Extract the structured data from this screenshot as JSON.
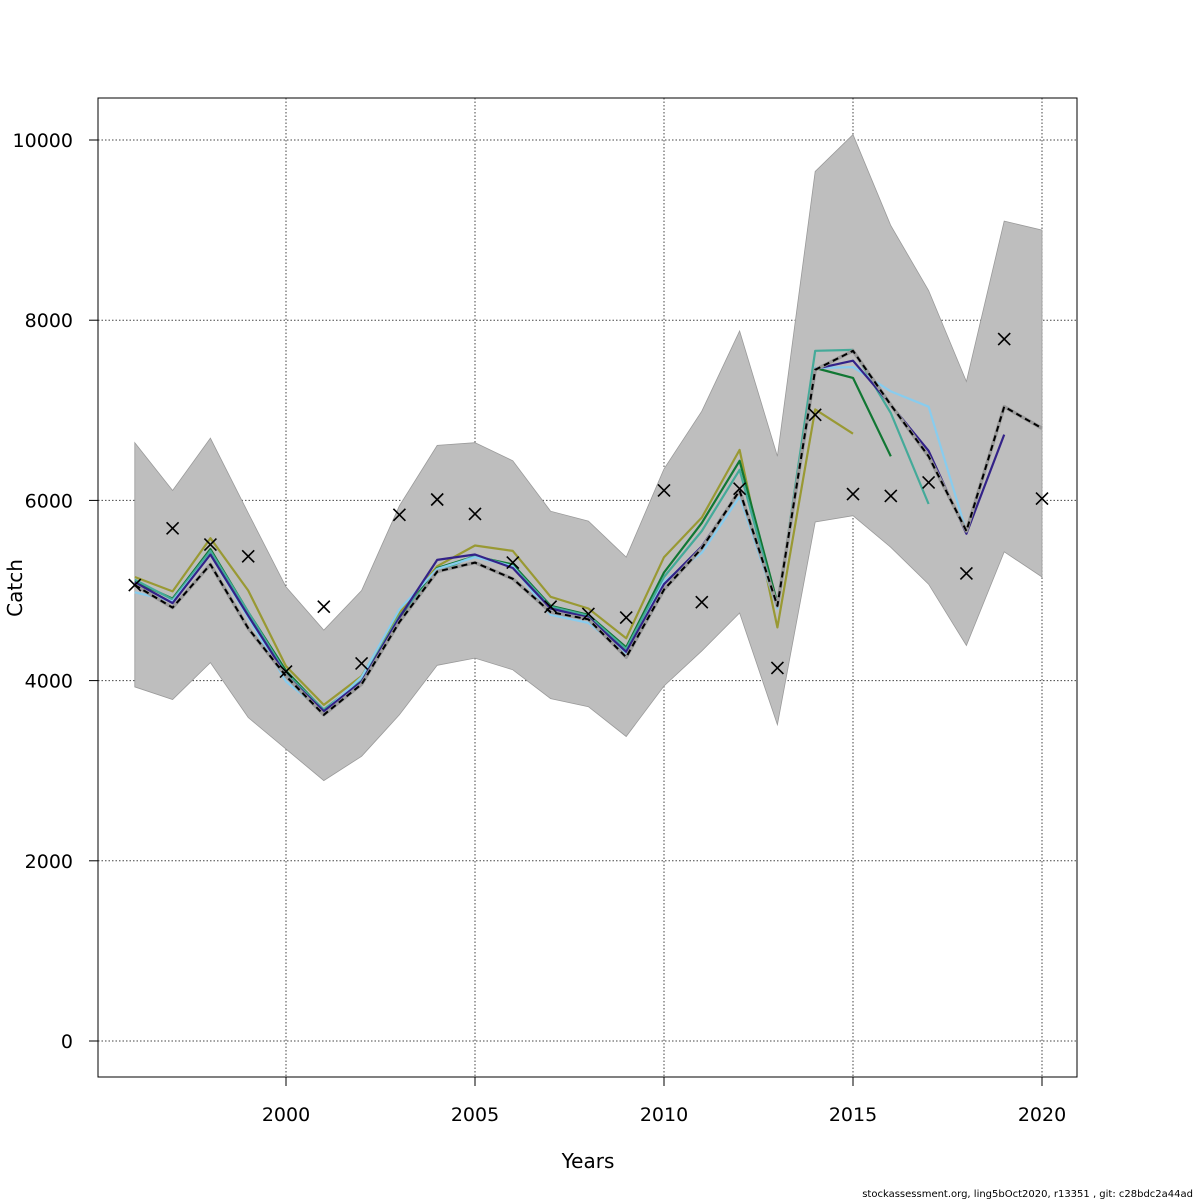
{
  "chart_data": {
    "type": "line",
    "title": "",
    "xlabel": "Years",
    "ylabel": "Catch",
    "xlim": [
      1995.0,
      2021.0
    ],
    "ylim": [
      -400,
      10500
    ],
    "x_ticks": [
      2000,
      2005,
      2010,
      2015,
      2020
    ],
    "y_ticks": [
      0,
      2000,
      4000,
      6000,
      8000,
      10000
    ],
    "grid": true,
    "footer": "stockassessment.org, ling5bOct2020, r13351 , git: c28bdc2a44ad",
    "band": {
      "years": [
        1996,
        1997,
        1998,
        1999,
        2000,
        2001,
        2002,
        2003,
        2004,
        2005,
        2006,
        2007,
        2008,
        2009,
        2010,
        2011,
        2012,
        2013,
        2014,
        2015,
        2016,
        2017,
        2018,
        2019,
        2020
      ],
      "lower": [
        3930,
        3790,
        4200,
        3590,
        3240,
        2890,
        3160,
        3620,
        4170,
        4250,
        4120,
        3800,
        3710,
        3380,
        3940,
        4330,
        4750,
        3510,
        5760,
        5830,
        5480,
        5070,
        4390,
        5430,
        5150
      ],
      "upper": [
        6640,
        6110,
        6690,
        5860,
        5040,
        4560,
        5000,
        5940,
        6610,
        6640,
        6440,
        5880,
        5770,
        5370,
        6350,
        6990,
        7880,
        6490,
        9650,
        10060,
        9050,
        8330,
        7320,
        9100,
        9000
      ],
      "color": "#bebebe"
    },
    "observed": {
      "years": [
        1996,
        1997,
        1998,
        1999,
        2000,
        2001,
        2002,
        2003,
        2004,
        2005,
        2006,
        2007,
        2008,
        2009,
        2010,
        2011,
        2012,
        2013,
        2014,
        2015,
        2016,
        2017,
        2018,
        2019,
        2020
      ],
      "values": [
        5060,
        5690,
        5510,
        5380,
        4100,
        4820,
        4190,
        5840,
        6010,
        5850,
        5310,
        4820,
        4740,
        4700,
        6110,
        4870,
        6130,
        4140,
        6950,
        6070,
        6050,
        6200,
        5190,
        7790,
        6020
      ]
    },
    "series": [
      {
        "color": "#000000",
        "dashed": true,
        "years": [
          1996,
          1997,
          1998,
          1999,
          2000,
          2001,
          2002,
          2003,
          2004,
          2005,
          2006,
          2007,
          2008,
          2009,
          2010,
          2011,
          2012,
          2013,
          2014,
          2015,
          2016,
          2017,
          2018,
          2019,
          2020
        ],
        "values": [
          5060,
          4810,
          5290,
          4580,
          4050,
          3620,
          3960,
          4650,
          5210,
          5310,
          5130,
          4760,
          4680,
          4260,
          5010,
          5470,
          6110,
          4830,
          7450,
          7660,
          7060,
          6490,
          5660,
          7040,
          6800
        ]
      },
      {
        "color": "#332288",
        "years": [
          1996,
          1997,
          1998,
          1999,
          2000,
          2001,
          2002,
          2003,
          2004,
          2005,
          2006,
          2007,
          2008,
          2009,
          2010,
          2011,
          2012,
          2013,
          2014,
          2015,
          2016,
          2017,
          2018,
          2019
        ],
        "values": [
          5090,
          4860,
          5400,
          4720,
          4060,
          3660,
          3990,
          4700,
          5340,
          5400,
          5250,
          4800,
          4700,
          4320,
          5070,
          5490,
          6110,
          4830,
          7460,
          7550,
          7060,
          6550,
          5630,
          6730
        ]
      },
      {
        "color": "#88ccee",
        "years": [
          1996,
          1997,
          1998,
          1999,
          2000,
          2001,
          2002,
          2003,
          2004,
          2005,
          2006,
          2007,
          2008,
          2009,
          2010,
          2011,
          2012,
          2013,
          2014,
          2015,
          2016,
          2017,
          2018
        ],
        "values": [
          4980,
          4880,
          5400,
          4700,
          3990,
          3650,
          4040,
          4790,
          5240,
          5370,
          5270,
          4730,
          4640,
          4300,
          5100,
          5420,
          6040,
          4800,
          7470,
          7480,
          7210,
          7040,
          5650
        ]
      },
      {
        "color": "#44aa99",
        "years": [
          1996,
          1997,
          1998,
          1999,
          2000,
          2001,
          2002,
          2003,
          2004,
          2005,
          2006,
          2007,
          2008,
          2009,
          2010,
          2011,
          2012,
          2013,
          2014,
          2015,
          2016,
          2017
        ],
        "values": [
          5120,
          4900,
          5440,
          4760,
          4080,
          3680,
          4000,
          4720,
          5200,
          5390,
          5270,
          4820,
          4720,
          4350,
          5150,
          5660,
          6340,
          4810,
          7660,
          7670,
          6970,
          5960
        ]
      },
      {
        "color": "#117733",
        "years": [
          1996,
          1997,
          1998,
          1999,
          2000,
          2001,
          2002,
          2003,
          2004,
          2005,
          2006,
          2007,
          2008,
          2009,
          2010,
          2011,
          2012,
          2013,
          2014,
          2015,
          2016
        ],
        "values": [
          5100,
          4910,
          5460,
          4760,
          4110,
          3670,
          3980,
          4690,
          5250,
          5380,
          5290,
          4830,
          4730,
          4370,
          5200,
          5750,
          6440,
          4860,
          7470,
          7360,
          6490
        ]
      },
      {
        "color": "#999933",
        "years": [
          1996,
          1997,
          1998,
          1999,
          2000,
          2001,
          2002,
          2003,
          2004,
          2005,
          2006,
          2007,
          2008,
          2009,
          2010,
          2011,
          2012,
          2013,
          2014,
          2015
        ],
        "values": [
          5150,
          4990,
          5580,
          5000,
          4160,
          3730,
          4050,
          4750,
          5270,
          5500,
          5440,
          4930,
          4800,
          4470,
          5370,
          5810,
          6560,
          4590,
          7010,
          6740
        ]
      }
    ]
  }
}
